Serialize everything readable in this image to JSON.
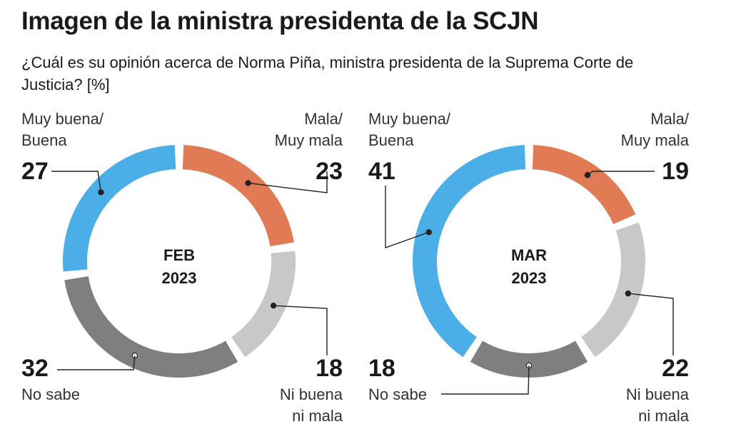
{
  "title": "Imagen de la ministra presidenta de la SCJN",
  "subtitle": "¿Cuál es su opinión acerca de Norma Piña, ministra presidenta de la Suprema Corte de Justicia? [%]",
  "colors": {
    "muy_buena_buena": "#4BAEE6",
    "mala_muy_mala": "#E07B55",
    "ni_buena_ni_mala": "#C8C8C8",
    "no_sabe": "#7F7F7F"
  },
  "chart_data": [
    {
      "type": "pie",
      "variant": "donut",
      "center_label": [
        "FEB",
        "2023"
      ],
      "categories": [
        "Mala/ Muy mala",
        "Ni buena ni mala",
        "No sabe",
        "Muy buena/ Buena"
      ],
      "values": [
        23,
        18,
        32,
        27
      ],
      "labels": {
        "muy_buena_buena": [
          "Muy buena/",
          "Buena"
        ],
        "mala_muy_mala": [
          "Mala/",
          "Muy mala"
        ],
        "ni_buena_ni_mala": [
          "Ni buena",
          "ni mala"
        ],
        "no_sabe": [
          "No sabe"
        ]
      },
      "values_text": {
        "muy_buena_buena": "27",
        "mala_muy_mala": "23",
        "ni_buena_ni_mala": "18",
        "no_sabe": "32"
      }
    },
    {
      "type": "pie",
      "variant": "donut",
      "center_label": [
        "MAR",
        "2023"
      ],
      "categories": [
        "Mala/ Muy mala",
        "Ni buena ni mala",
        "No sabe",
        "Muy buena/ Buena"
      ],
      "values": [
        19,
        22,
        18,
        41
      ],
      "labels": {
        "muy_buena_buena": [
          "Muy buena/",
          "Buena"
        ],
        "mala_muy_mala": [
          "Mala/",
          "Muy mala"
        ],
        "ni_buena_ni_mala": [
          "Ni buena",
          "ni mala"
        ],
        "no_sabe": [
          "No sabe"
        ]
      },
      "values_text": {
        "muy_buena_buena": "41",
        "mala_muy_mala": "19",
        "ni_buena_ni_mala": "22",
        "no_sabe": "18"
      }
    }
  ]
}
